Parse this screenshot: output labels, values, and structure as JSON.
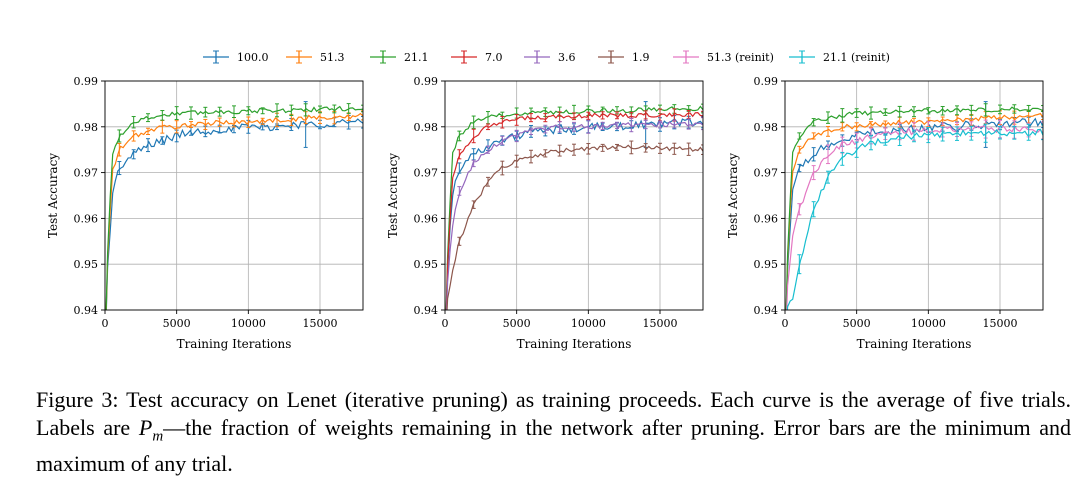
{
  "caption": {
    "label": "Figure 3:",
    "text_before": "Test accuracy on Lenet (iterative pruning) as training proceeds. Each curve is the average of five trials. Labels are",
    "pm_symbol": "P",
    "pm_subscript": "m",
    "text_after": "—the fraction of weights remaining in the network after pruning. Error bars are the minimum and maximum of any trial."
  },
  "legend": [
    {
      "name": "100.0",
      "color": "#1f77b4"
    },
    {
      "name": "51.3",
      "color": "#ff7f0e"
    },
    {
      "name": "21.1",
      "color": "#2ca02c"
    },
    {
      "name": "7.0",
      "color": "#d62728"
    },
    {
      "name": "3.6",
      "color": "#9467bd"
    },
    {
      "name": "1.9",
      "color": "#8c564b"
    },
    {
      "name": "51.3 (reinit)",
      "color": "#e377c2"
    },
    {
      "name": "21.1 (reinit)",
      "color": "#17becf"
    }
  ],
  "chart_data": [
    {
      "type": "line",
      "title": "",
      "xlabel": "Training Iterations",
      "ylabel": "Test Accuracy",
      "xlim": [
        0,
        18000
      ],
      "ylim": [
        0.94,
        0.99
      ],
      "xticks": [
        0,
        5000,
        10000,
        15000
      ],
      "yticks": [
        0.94,
        0.95,
        0.96,
        0.97,
        0.98,
        0.99
      ],
      "grid": true,
      "series": [
        {
          "name": "100.0",
          "color": "#1f77b4",
          "x": [
            0,
            500,
            1000,
            2000,
            3000,
            4000,
            5000,
            6000,
            7000,
            8000,
            9000,
            10000,
            11000,
            12000,
            13000,
            14000,
            15000,
            16000,
            17000,
            18000
          ],
          "values": [
            0.94,
            0.965,
            0.971,
            0.974,
            0.976,
            0.977,
            0.978,
            0.979,
            0.979,
            0.9795,
            0.9795,
            0.98,
            0.98,
            0.98,
            0.9805,
            0.9805,
            0.9805,
            0.981,
            0.981,
            0.981
          ]
        },
        {
          "name": "51.3",
          "color": "#ff7f0e",
          "x": [
            0,
            500,
            1000,
            2000,
            3000,
            4000,
            5000,
            6000,
            7000,
            8000,
            9000,
            10000,
            11000,
            12000,
            13000,
            14000,
            15000,
            16000,
            17000,
            18000
          ],
          "values": [
            0.94,
            0.97,
            0.975,
            0.978,
            0.979,
            0.98,
            0.98,
            0.9805,
            0.9805,
            0.981,
            0.981,
            0.981,
            0.9812,
            0.9815,
            0.9815,
            0.982,
            0.982,
            0.982,
            0.9822,
            0.9825
          ]
        },
        {
          "name": "21.1",
          "color": "#2ca02c",
          "x": [
            0,
            500,
            1000,
            2000,
            3000,
            4000,
            5000,
            6000,
            7000,
            8000,
            9000,
            10000,
            11000,
            12000,
            13000,
            14000,
            15000,
            16000,
            17000,
            18000
          ],
          "values": [
            0.94,
            0.974,
            0.978,
            0.981,
            0.982,
            0.9825,
            0.983,
            0.983,
            0.9832,
            0.9833,
            0.9833,
            0.9835,
            0.9835,
            0.9836,
            0.9836,
            0.9837,
            0.9838,
            0.9839,
            0.984,
            0.984
          ]
        }
      ]
    },
    {
      "type": "line",
      "title": "",
      "xlabel": "Training Iterations",
      "ylabel": "Test Accuracy",
      "xlim": [
        0,
        18000
      ],
      "ylim": [
        0.94,
        0.99
      ],
      "xticks": [
        0,
        5000,
        10000,
        15000
      ],
      "yticks": [
        0.94,
        0.95,
        0.96,
        0.97,
        0.98,
        0.99
      ],
      "grid": true,
      "series": [
        {
          "name": "100.0",
          "color": "#1f77b4",
          "x": [
            0,
            500,
            1000,
            2000,
            3000,
            4000,
            5000,
            6000,
            7000,
            8000,
            9000,
            10000,
            11000,
            12000,
            13000,
            14000,
            15000,
            16000,
            17000,
            18000
          ],
          "values": [
            0.94,
            0.965,
            0.971,
            0.974,
            0.976,
            0.977,
            0.978,
            0.979,
            0.979,
            0.9795,
            0.9795,
            0.98,
            0.98,
            0.98,
            0.9805,
            0.9805,
            0.9805,
            0.981,
            0.981,
            0.981
          ]
        },
        {
          "name": "21.1",
          "color": "#2ca02c",
          "x": [
            0,
            500,
            1000,
            2000,
            3000,
            4000,
            5000,
            6000,
            7000,
            8000,
            9000,
            10000,
            11000,
            12000,
            13000,
            14000,
            15000,
            16000,
            17000,
            18000
          ],
          "values": [
            0.94,
            0.974,
            0.978,
            0.981,
            0.982,
            0.9825,
            0.983,
            0.983,
            0.9832,
            0.9833,
            0.9833,
            0.9835,
            0.9835,
            0.9836,
            0.9836,
            0.9837,
            0.9838,
            0.9839,
            0.984,
            0.984
          ]
        },
        {
          "name": "7.0",
          "color": "#d62728",
          "x": [
            0,
            500,
            1000,
            2000,
            3000,
            4000,
            5000,
            6000,
            7000,
            8000,
            9000,
            10000,
            11000,
            12000,
            13000,
            14000,
            15000,
            16000,
            17000,
            18000
          ],
          "values": [
            0.94,
            0.968,
            0.974,
            0.978,
            0.98,
            0.981,
            0.9815,
            0.982,
            0.982,
            0.9822,
            0.9823,
            0.9824,
            0.9825,
            0.9825,
            0.9825,
            0.9826,
            0.9826,
            0.9826,
            0.9827,
            0.9827
          ]
        },
        {
          "name": "3.6",
          "color": "#9467bd",
          "x": [
            0,
            500,
            1000,
            2000,
            3000,
            4000,
            5000,
            6000,
            7000,
            8000,
            9000,
            10000,
            11000,
            12000,
            13000,
            14000,
            15000,
            16000,
            17000,
            18000
          ],
          "values": [
            0.94,
            0.958,
            0.966,
            0.972,
            0.975,
            0.977,
            0.978,
            0.979,
            0.9795,
            0.98,
            0.98,
            0.98,
            0.9802,
            0.9803,
            0.9804,
            0.9805,
            0.9805,
            0.9806,
            0.9806,
            0.9807
          ]
        },
        {
          "name": "1.9",
          "color": "#8c564b",
          "x": [
            0,
            500,
            1000,
            2000,
            3000,
            4000,
            5000,
            6000,
            7000,
            8000,
            9000,
            10000,
            11000,
            12000,
            13000,
            14000,
            15000,
            16000,
            17000,
            18000
          ],
          "values": [
            0.94,
            0.948,
            0.955,
            0.963,
            0.968,
            0.971,
            0.9725,
            0.9735,
            0.9742,
            0.9748,
            0.975,
            0.9752,
            0.9754,
            0.9755,
            0.9755,
            0.9754,
            0.9753,
            0.9752,
            0.9751,
            0.975
          ]
        }
      ]
    },
    {
      "type": "line",
      "title": "",
      "xlabel": "Training Iterations",
      "ylabel": "Test Accuracy",
      "xlim": [
        0,
        18000
      ],
      "ylim": [
        0.94,
        0.99
      ],
      "xticks": [
        0,
        5000,
        10000,
        15000
      ],
      "yticks": [
        0.94,
        0.95,
        0.96,
        0.97,
        0.98,
        0.99
      ],
      "grid": true,
      "series": [
        {
          "name": "100.0",
          "color": "#1f77b4",
          "x": [
            0,
            500,
            1000,
            2000,
            3000,
            4000,
            5000,
            6000,
            7000,
            8000,
            9000,
            10000,
            11000,
            12000,
            13000,
            14000,
            15000,
            16000,
            17000,
            18000
          ],
          "values": [
            0.94,
            0.965,
            0.971,
            0.974,
            0.976,
            0.977,
            0.978,
            0.979,
            0.979,
            0.9795,
            0.9795,
            0.98,
            0.98,
            0.98,
            0.9805,
            0.9805,
            0.9805,
            0.981,
            0.981,
            0.981
          ]
        },
        {
          "name": "51.3",
          "color": "#ff7f0e",
          "x": [
            0,
            500,
            1000,
            2000,
            3000,
            4000,
            5000,
            6000,
            7000,
            8000,
            9000,
            10000,
            11000,
            12000,
            13000,
            14000,
            15000,
            16000,
            17000,
            18000
          ],
          "values": [
            0.94,
            0.97,
            0.975,
            0.978,
            0.979,
            0.98,
            0.98,
            0.9805,
            0.9805,
            0.981,
            0.981,
            0.981,
            0.9812,
            0.9815,
            0.9815,
            0.982,
            0.982,
            0.982,
            0.9822,
            0.9825
          ]
        },
        {
          "name": "21.1",
          "color": "#2ca02c",
          "x": [
            0,
            500,
            1000,
            2000,
            3000,
            4000,
            5000,
            6000,
            7000,
            8000,
            9000,
            10000,
            11000,
            12000,
            13000,
            14000,
            15000,
            16000,
            17000,
            18000
          ],
          "values": [
            0.94,
            0.974,
            0.978,
            0.981,
            0.982,
            0.9825,
            0.983,
            0.983,
            0.9832,
            0.9833,
            0.9833,
            0.9835,
            0.9835,
            0.9836,
            0.9836,
            0.9837,
            0.9838,
            0.9839,
            0.984,
            0.984
          ]
        },
        {
          "name": "51.3 (reinit)",
          "color": "#e377c2",
          "x": [
            0,
            500,
            1000,
            2000,
            3000,
            4000,
            5000,
            6000,
            7000,
            8000,
            9000,
            10000,
            11000,
            12000,
            13000,
            14000,
            15000,
            16000,
            17000,
            18000
          ],
          "values": [
            0.94,
            0.955,
            0.962,
            0.97,
            0.974,
            0.976,
            0.977,
            0.978,
            0.9785,
            0.979,
            0.979,
            0.9792,
            0.9793,
            0.9794,
            0.9795,
            0.9795,
            0.9795,
            0.9794,
            0.9793,
            0.9792
          ]
        },
        {
          "name": "21.1 (reinit)",
          "color": "#17becf",
          "x": [
            0,
            500,
            1000,
            2000,
            3000,
            4000,
            5000,
            6000,
            7000,
            8000,
            9000,
            10000,
            11000,
            12000,
            13000,
            14000,
            15000,
            16000,
            17000,
            18000
          ],
          "values": [
            0.94,
            0.942,
            0.95,
            0.962,
            0.969,
            0.973,
            0.975,
            0.9765,
            0.9772,
            0.9778,
            0.978,
            0.9782,
            0.9784,
            0.9785,
            0.9786,
            0.9786,
            0.9787,
            0.9787,
            0.9788,
            0.9788
          ]
        }
      ]
    }
  ]
}
